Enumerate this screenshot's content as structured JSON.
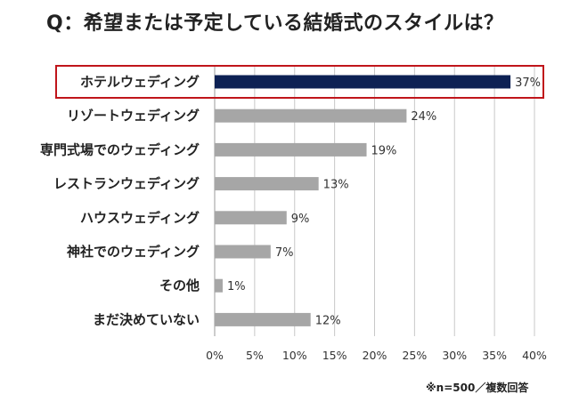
{
  "title": "Q：希望または予定している結婚式のスタイルは？",
  "footnote": "※n=500／複数回答",
  "colors": {
    "highlight_bar": "#0d2154",
    "bar": "#a6a6a6",
    "highlight_box": "#c0151b",
    "grid": "#c8c8c8"
  },
  "chart_data": {
    "type": "bar",
    "orientation": "horizontal",
    "title": "Q：希望または予定している結婚式のスタイルは？",
    "categories": [
      "ホテルウェディング",
      "リゾートウェディング",
      "専門式場でのウェディング",
      "レストランウェディング",
      "ハウスウェディング",
      "神社でのウェディング",
      "その他",
      "まだ決めていない"
    ],
    "values": [
      37,
      24,
      19,
      13,
      9,
      7,
      1,
      12
    ],
    "value_labels": [
      "37%",
      "24%",
      "19%",
      "13%",
      "9%",
      "7%",
      "1%",
      "12%"
    ],
    "xlim": [
      0,
      40
    ],
    "x_ticks": [
      "0%",
      "5%",
      "10%",
      "15%",
      "20%",
      "25%",
      "30%",
      "35%",
      "40%"
    ],
    "grid": true,
    "highlighted_category": "ホテルウェディング",
    "xlabel": "",
    "ylabel": ""
  }
}
